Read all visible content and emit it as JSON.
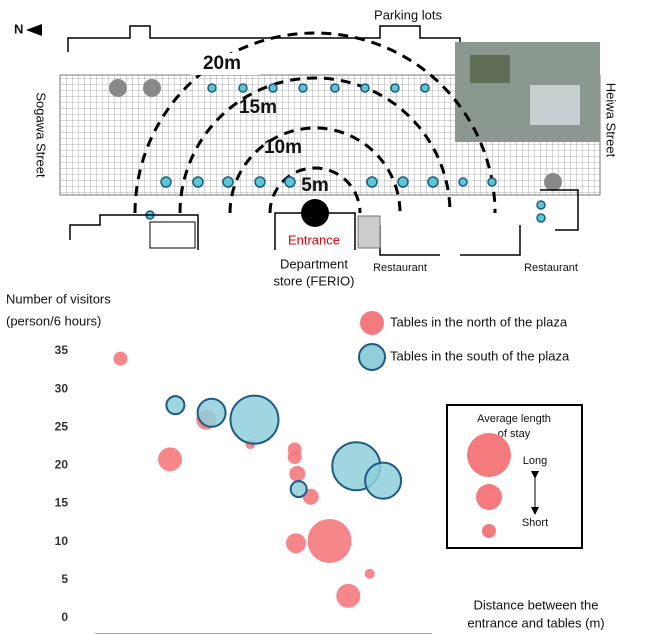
{
  "map": {
    "north": "N",
    "parking": "Parking lots",
    "rings": [
      "20m",
      "15m",
      "10m",
      "5m"
    ],
    "west_street": "Sogawa Street",
    "east_street": "Heiwa Street",
    "entrance": "Entrance",
    "store": [
      "Department",
      "store (FERIO)"
    ],
    "restaurants": [
      "Restaurant",
      "Restaurant"
    ]
  },
  "chart_data": {
    "type": "scatter",
    "y_label": [
      "Number of visitors",
      "(person/6 hours)"
    ],
    "x_label": [
      "Distance between the",
      "entrance and tables (m)"
    ],
    "ylim": [
      0,
      35
    ],
    "yticks": [
      0,
      5,
      10,
      15,
      20,
      25,
      30,
      35
    ],
    "xlim": [
      0,
      25
    ],
    "series": [
      {
        "name": "Tables in the north of the plaza",
        "color": "#f47a7e",
        "x": [
          1.9,
          5.6,
          8.3,
          11.6,
          14.9,
          14.9,
          15.1,
          16.1,
          15.0,
          17.5,
          20.5,
          18.9
        ],
        "values": [
          34,
          20.8,
          26,
          22.8,
          22.1,
          21.1,
          18.9,
          15.9,
          9.8,
          10.1,
          5.8,
          2.9
        ],
        "sizes": [
          7,
          12,
          10,
          5,
          7,
          7,
          8,
          8,
          10,
          22,
          5,
          12
        ]
      },
      {
        "name": "Tables in the south of the plaza",
        "color": "#8ecfd9",
        "edge": "#1f5a85",
        "x": [
          6.0,
          8.7,
          11.9,
          15.2,
          19.5,
          21.5
        ],
        "values": [
          27.9,
          26.9,
          26.0,
          16.9,
          19.9,
          18.0
        ],
        "sizes": [
          9,
          14,
          24,
          8,
          24,
          18
        ]
      }
    ],
    "size_legend": {
      "title": [
        "Average length",
        "of stay"
      ],
      "long": "Long",
      "short": "Short"
    }
  }
}
